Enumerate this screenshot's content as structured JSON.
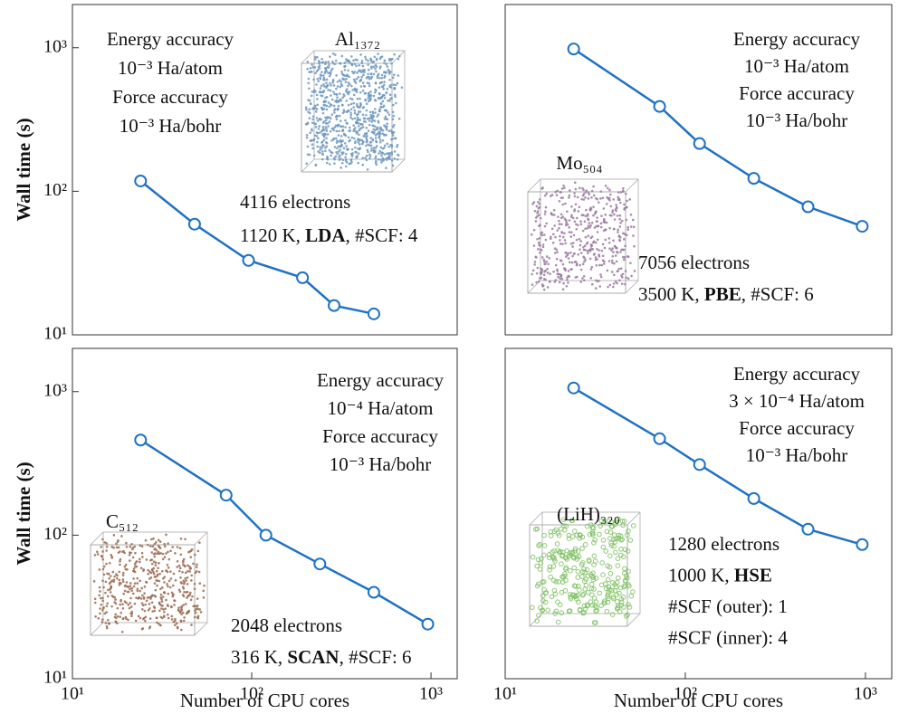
{
  "chart_data": [
    {
      "type": "line",
      "color": "#1f72c6",
      "log_x": true,
      "log_y": true,
      "x": [
        24,
        48,
        96,
        192,
        288,
        480
      ],
      "values": [
        118,
        59,
        33,
        25,
        16,
        14
      ],
      "xlim": [
        10,
        1400
      ],
      "ylim": [
        10,
        2000
      ],
      "yticks": [
        {
          "value": 10,
          "label": "10¹"
        },
        {
          "value": 100,
          "label": "10²"
        },
        {
          "value": 1000,
          "label": "10³"
        }
      ],
      "ylabel": "Wall time (s)",
      "system": "Al₁₃₇₂",
      "atom_color": "#6f98c0",
      "accuracy": [
        [
          "Energy accuracy"
        ],
        [
          "10⁻³ Ha/atom"
        ],
        [
          "Force accuracy"
        ],
        [
          "10⁻³ Ha/bohr"
        ]
      ],
      "details": [
        [
          "4116 electrons"
        ],
        [
          "1120 K, ",
          {
            "text": "LDA",
            "bold": true
          },
          ", #SCF: 4"
        ]
      ]
    },
    {
      "type": "line",
      "color": "#1f72c6",
      "log_x": true,
      "log_y": true,
      "x": [
        24,
        72,
        120,
        240,
        480,
        960
      ],
      "values": [
        980,
        390,
        215,
        123,
        78,
        57
      ],
      "xlim": [
        10,
        1400
      ],
      "ylim": [
        10,
        2000
      ],
      "system": "Mo₅₀₄",
      "atom_color": "#9a7aa0",
      "accuracy": [
        [
          "Energy accuracy"
        ],
        [
          "10⁻³ Ha/atom"
        ],
        [
          "Force accuracy"
        ],
        [
          "10⁻³ Ha/bohr"
        ]
      ],
      "details": [
        [
          "7056 electrons"
        ],
        [
          "3500 K, ",
          {
            "text": "PBE",
            "bold": true
          },
          ", #SCF: 6"
        ]
      ]
    },
    {
      "type": "line",
      "color": "#1f72c6",
      "log_x": true,
      "log_y": true,
      "x": [
        24,
        72,
        120,
        240,
        480,
        960
      ],
      "values": [
        460,
        190,
        100,
        63,
        40,
        24
      ],
      "xlim": [
        10,
        1400
      ],
      "ylim": [
        10,
        2000
      ],
      "xticks": [
        {
          "value": 10,
          "label": "10¹"
        },
        {
          "value": 100,
          "label": "10²"
        },
        {
          "value": 1000,
          "label": "10³"
        }
      ],
      "yticks": [
        {
          "value": 10,
          "label": "10¹"
        },
        {
          "value": 100,
          "label": "10²"
        },
        {
          "value": 1000,
          "label": "10³"
        }
      ],
      "xlabel": "Number of CPU cores",
      "ylabel": "Wall time (s)",
      "system": "C₅₁₂",
      "atom_color": "#9a6a50",
      "accuracy": [
        [
          "Energy accuracy"
        ],
        [
          "10⁻⁴ Ha/atom"
        ],
        [
          "Force accuracy"
        ],
        [
          "10⁻³ Ha/bohr"
        ]
      ],
      "details": [
        [
          "2048 electrons"
        ],
        [
          "316 K, ",
          {
            "text": "SCAN",
            "bold": true
          },
          ", #SCF: 6"
        ]
      ]
    },
    {
      "type": "line",
      "color": "#1f72c6",
      "log_x": true,
      "log_y": true,
      "x": [
        24,
        72,
        120,
        240,
        480,
        960
      ],
      "values": [
        1060,
        470,
        310,
        180,
        110,
        86
      ],
      "xlim": [
        10,
        1400
      ],
      "ylim": [
        10,
        2000
      ],
      "xticks": [
        {
          "value": 10,
          "label": "10¹"
        },
        {
          "value": 100,
          "label": "10²"
        },
        {
          "value": 1000,
          "label": "10³"
        }
      ],
      "xlabel": "Number of CPU cores",
      "system": "(LiH)₃₂₀",
      "atom_color": "#7cc060",
      "accuracy": [
        [
          "Energy accuracy"
        ],
        [
          "3 × 10⁻⁴ Ha/atom"
        ],
        [
          "Force accuracy"
        ],
        [
          "10⁻³ Ha/bohr"
        ]
      ],
      "details": [
        [
          "1280 electrons"
        ],
        [
          "1000 K, ",
          {
            "text": "HSE",
            "bold": true
          }
        ],
        [
          "#SCF (outer): 1"
        ],
        [
          "#SCF (inner): 4"
        ]
      ]
    }
  ]
}
